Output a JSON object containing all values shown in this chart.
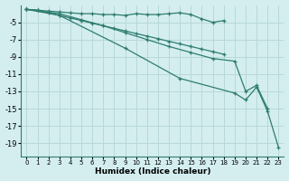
{
  "xlabel": "Humidex (Indice chaleur)",
  "background_color": "#d4eef0",
  "grid_color": "#b8d8d8",
  "line_color": "#2e7d6e",
  "xlim": [
    -0.5,
    23.5
  ],
  "ylim": [
    -20.5,
    -3.0
  ],
  "yticks": [
    -5,
    -7,
    -9,
    -11,
    -13,
    -15,
    -17,
    -19
  ],
  "xticks": [
    0,
    1,
    2,
    3,
    4,
    5,
    6,
    7,
    8,
    9,
    10,
    11,
    12,
    13,
    14,
    15,
    16,
    17,
    18,
    19,
    20,
    21,
    22,
    23
  ],
  "series": [
    {
      "x": [
        0,
        1,
        2,
        3,
        4,
        5,
        6,
        7,
        8,
        9,
        10,
        11,
        12,
        13,
        14,
        15,
        16,
        17,
        18
      ],
      "y": [
        -3.5,
        -3.6,
        -3.7,
        -3.8,
        -3.9,
        -4.0,
        -4.0,
        -4.1,
        -4.1,
        -4.2,
        -4.0,
        -4.1,
        -4.1,
        -4.0,
        -3.9,
        -4.1,
        -4.6,
        -5.0,
        -4.8
      ]
    },
    {
      "x": [
        0,
        1,
        2,
        3,
        4,
        5,
        6,
        7,
        8,
        9,
        10,
        11,
        12,
        13,
        14,
        15,
        16,
        17,
        18
      ],
      "y": [
        -3.5,
        -3.6,
        -3.9,
        -4.2,
        -4.5,
        -4.8,
        -5.1,
        -5.4,
        -5.7,
        -6.0,
        -6.3,
        -6.6,
        -6.9,
        -7.2,
        -7.5,
        -7.8,
        -8.1,
        -8.4,
        -8.7
      ]
    },
    {
      "x": [
        0,
        3,
        5,
        7,
        9,
        11,
        13,
        15,
        17,
        19,
        20,
        21,
        22
      ],
      "y": [
        -3.5,
        -4.0,
        -4.7,
        -5.4,
        -6.2,
        -7.0,
        -7.8,
        -8.5,
        -9.2,
        -9.5,
        -13.0,
        -12.3,
        -15.0
      ]
    },
    {
      "x": [
        0,
        3,
        9,
        14,
        19,
        20,
        21,
        22,
        23
      ],
      "y": [
        -3.5,
        -4.2,
        -8.0,
        -11.5,
        -13.2,
        -14.0,
        -12.5,
        -15.3,
        -19.5
      ]
    }
  ]
}
